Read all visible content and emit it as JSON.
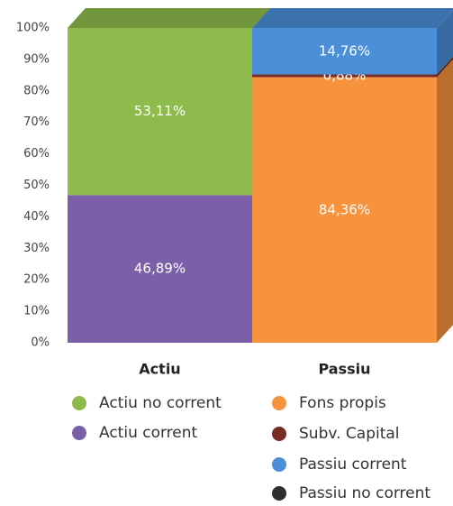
{
  "chart_data": {
    "type": "bar",
    "stacked": true,
    "categories": [
      "Actiu",
      "Passiu"
    ],
    "series": [
      {
        "name": "Actiu no corrent",
        "color": "#8dbb4c",
        "values": [
          53.11,
          null
        ],
        "value_labels": [
          "53,11%",
          null
        ]
      },
      {
        "name": "Actiu corrent",
        "color": "#7b5fa9",
        "values": [
          46.89,
          null
        ],
        "value_labels": [
          "46,89%",
          null
        ]
      },
      {
        "name": "Fons propis",
        "color": "#f7923d",
        "values": [
          null,
          84.36
        ],
        "value_labels": [
          null,
          "84,36%"
        ]
      },
      {
        "name": "Subv. Capital",
        "color": "#7a2b25",
        "values": [
          null,
          0.88
        ],
        "value_labels": [
          null,
          "0,88%"
        ]
      },
      {
        "name": "Passiu corrent",
        "color": "#4a8fd8",
        "values": [
          null,
          14.76
        ],
        "value_labels": [
          null,
          "14,76%"
        ]
      },
      {
        "name": "Passiu no corrent",
        "color": "#2e2e2e",
        "values": [
          null,
          null
        ]
      }
    ],
    "ylim": [
      0,
      100
    ],
    "yticks": [
      {
        "value": 0,
        "label": "0%"
      },
      {
        "value": 10,
        "label": "10%"
      },
      {
        "value": 20,
        "label": "20%"
      },
      {
        "value": 30,
        "label": "30%"
      },
      {
        "value": 40,
        "label": "40%"
      },
      {
        "value": 50,
        "label": "50%"
      },
      {
        "value": 60,
        "label": "60%"
      },
      {
        "value": 70,
        "label": "70%"
      },
      {
        "value": 80,
        "label": "80%"
      },
      {
        "value": 90,
        "label": "90%"
      },
      {
        "value": 100,
        "label": "100%"
      }
    ],
    "grid": false
  }
}
